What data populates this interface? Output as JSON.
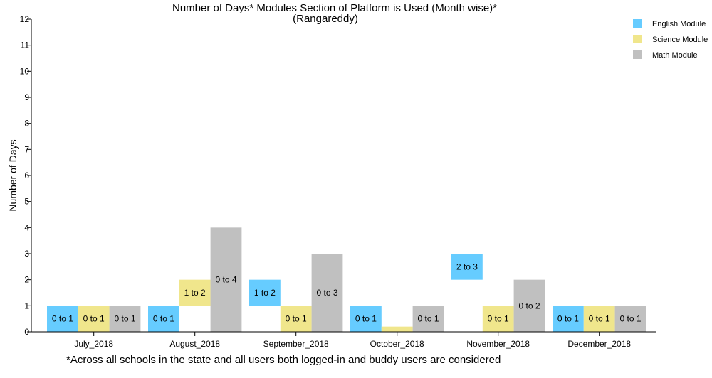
{
  "chart_data": {
    "type": "bar",
    "title": "Number of Days* Modules Section of Platform is Used (Month wise)*",
    "subtitle": "(Rangareddy)",
    "xlabel": "",
    "ylabel": "Number of Days",
    "ylim": [
      0,
      12
    ],
    "yticks": [
      "0",
      "1",
      "2",
      "3",
      "4",
      "5",
      "6",
      "7",
      "8",
      "9",
      "10",
      "11",
      "12"
    ],
    "grid": false,
    "legend_position": "top-right",
    "footnote": "*Across all schools in the state and all users both logged-in and buddy users are considered",
    "categories": [
      "July_2018",
      "August_2018",
      "September_2018",
      "October_2018",
      "November_2018",
      "December_2018"
    ],
    "series": [
      {
        "name": "English Module",
        "color": "#66ccff",
        "ranges": [
          [
            0,
            1
          ],
          [
            0,
            1
          ],
          [
            1,
            2
          ],
          [
            0,
            1
          ],
          [
            2,
            3
          ],
          [
            0,
            1
          ]
        ],
        "labels": [
          "0 to 1",
          "0 to 1",
          "1 to 2",
          "0 to 1",
          "2 to 3",
          "0 to 1"
        ]
      },
      {
        "name": "Science Module",
        "color": "#f0e68c",
        "ranges": [
          [
            0,
            1
          ],
          [
            1,
            2
          ],
          [
            0,
            1
          ],
          [
            0,
            0.2
          ],
          [
            0,
            1
          ],
          [
            0,
            1
          ]
        ],
        "labels": [
          "0 to 1",
          "1 to 2",
          "0 to 1",
          "",
          "0 to 1",
          "0 to 1"
        ]
      },
      {
        "name": "Math Module",
        "color": "#c0c0c0",
        "ranges": [
          [
            0,
            1
          ],
          [
            0,
            4
          ],
          [
            0,
            3
          ],
          [
            0,
            1
          ],
          [
            0,
            2
          ],
          [
            0,
            1
          ]
        ],
        "labels": [
          "0 to 1",
          "0 to 4",
          "0 to 3",
          "0 to 1",
          "0 to 2",
          "0 to 1"
        ]
      }
    ]
  }
}
